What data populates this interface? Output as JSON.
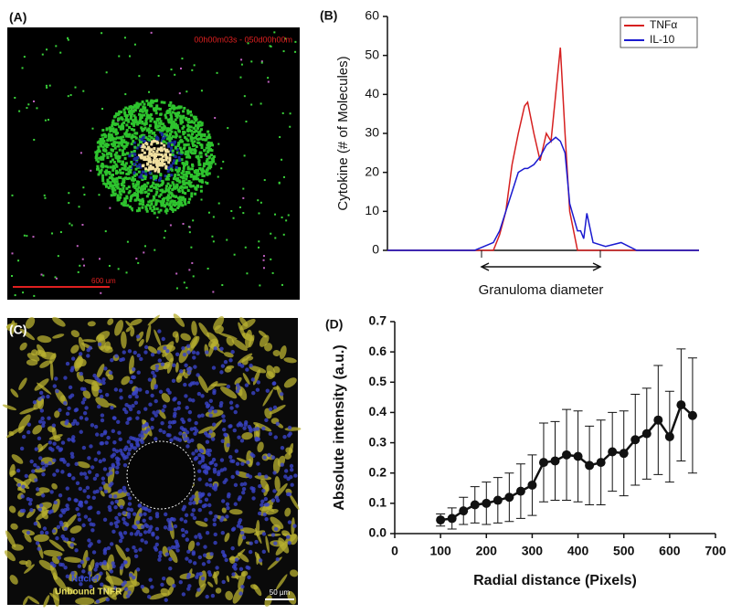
{
  "panels": {
    "a": {
      "label": "(A)",
      "timestamp": "00h00m03s - 050d00h00m",
      "scale": "600 um"
    },
    "c": {
      "label": "(C)",
      "legend_nuclei": "Nuclei",
      "legend_tnfr": "Unbound TNFR",
      "scale": "50 µm"
    }
  },
  "chart_data": [
    {
      "type": "line",
      "label": "(B)",
      "y_label": "Cytokine (# of Molecules)",
      "x_label": "Granuloma diameter",
      "x": [
        0,
        28,
        34,
        36,
        38,
        40,
        42,
        44,
        45,
        47,
        49,
        51,
        52.5,
        54,
        55.5,
        57,
        58.5,
        61,
        62,
        63,
        64,
        66,
        70,
        75,
        80,
        100
      ],
      "xlim": [
        0,
        100
      ],
      "ylim": [
        0,
        60
      ],
      "yticks": [
        0,
        10,
        20,
        30,
        40,
        50,
        60
      ],
      "legend": "top-right",
      "series": [
        {
          "name": "TNFα",
          "color": "#d62020",
          "values": [
            0,
            0,
            0,
            4,
            10,
            22,
            30,
            37,
            38,
            30,
            23,
            30,
            28,
            40,
            52,
            30,
            10,
            0,
            0,
            0,
            0,
            0,
            0,
            0,
            0,
            0
          ]
        },
        {
          "name": "IL-10",
          "color": "#1a1ad0",
          "values": [
            0,
            0,
            2,
            5,
            10,
            15,
            20,
            21,
            21,
            22,
            24,
            27,
            28,
            29,
            28,
            25,
            12,
            5,
            5,
            3,
            9.5,
            2,
            1,
            2,
            0,
            0
          ]
        }
      ]
    },
    {
      "type": "errorline",
      "label": "(D)",
      "y_label": "Absolute intensity (a.u.)",
      "x_label": "Radial distance (Pixels)",
      "x": [
        100,
        125,
        150,
        175,
        200,
        225,
        250,
        275,
        300,
        325,
        350,
        375,
        400,
        425,
        450,
        475,
        500,
        525,
        550,
        575,
        600,
        625,
        650
      ],
      "xlim": [
        0,
        700
      ],
      "xticks": [
        0,
        100,
        200,
        300,
        400,
        500,
        600,
        700
      ],
      "ylim": [
        0,
        0.7
      ],
      "yticks": [
        {
          "value": 0,
          "label": "0.0"
        },
        0.1,
        0.2,
        0.3,
        0.4,
        0.5,
        0.6,
        0.7
      ],
      "series": [
        {
          "color": "#111111",
          "values": [
            0.045,
            0.05,
            0.075,
            0.095,
            0.1,
            0.11,
            0.12,
            0.14,
            0.16,
            0.235,
            0.24,
            0.26,
            0.255,
            0.225,
            0.235,
            0.27,
            0.265,
            0.31,
            0.33,
            0.375,
            0.32,
            0.425,
            0.39
          ],
          "errors": [
            0.02,
            0.035,
            0.045,
            0.06,
            0.07,
            0.075,
            0.08,
            0.09,
            0.1,
            0.13,
            0.13,
            0.15,
            0.15,
            0.13,
            0.14,
            0.13,
            0.14,
            0.15,
            0.15,
            0.18,
            0.15,
            0.185,
            0.19
          ]
        }
      ]
    }
  ]
}
